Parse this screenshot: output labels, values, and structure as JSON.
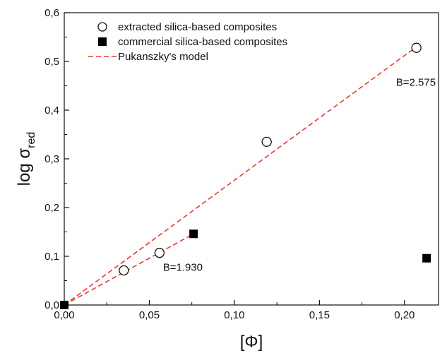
{
  "chart_data": {
    "type": "scatter",
    "xlabel": "[Φ]",
    "ylabel": {
      "main": "log σ",
      "subscript": "red"
    },
    "xlim": [
      0,
      0.22
    ],
    "ylim": [
      0,
      0.6
    ],
    "xticks": [
      "0,00",
      "0,05",
      "0,10",
      "0,15",
      "0,20"
    ],
    "yticks": [
      "0,0",
      "0,1",
      "0,2",
      "0,3",
      "0,4",
      "0,5",
      "0,6"
    ],
    "xtick_values": [
      0,
      0.05,
      0.1,
      0.15,
      0.2
    ],
    "ytick_values": [
      0,
      0.1,
      0.2,
      0.3,
      0.4,
      0.5,
      0.6
    ],
    "legend_position": "top-left",
    "grid": false,
    "series": [
      {
        "name": "extracted silica-based composites",
        "marker": "open-circle",
        "color": "#111111",
        "points": [
          [
            0.035,
            0.071
          ],
          [
            0.056,
            0.107
          ],
          [
            0.119,
            0.335
          ],
          [
            0.207,
            0.528
          ]
        ]
      },
      {
        "name": "commercial silica-based composites",
        "marker": "filled-square",
        "color": "#000000",
        "points": [
          [
            0.0,
            0.0
          ],
          [
            0.076,
            0.146
          ],
          [
            0.213,
            0.096
          ]
        ]
      },
      {
        "name": "Pukanszky's model",
        "marker": "dashed-line",
        "color": "#e53935",
        "lines": [
          {
            "label": "B=2.575",
            "points": [
              [
                0.0,
                0.0
              ],
              [
                0.207,
                0.53
              ]
            ]
          },
          {
            "label": "B=1.930",
            "points": [
              [
                0.0,
                0.0
              ],
              [
                0.076,
                0.146
              ]
            ]
          }
        ]
      }
    ],
    "annotations": [
      {
        "text": "B=2.575",
        "at": [
          0.195,
          0.45
        ]
      },
      {
        "text": "B=1.930",
        "at": [
          0.058,
          0.07
        ]
      }
    ]
  }
}
